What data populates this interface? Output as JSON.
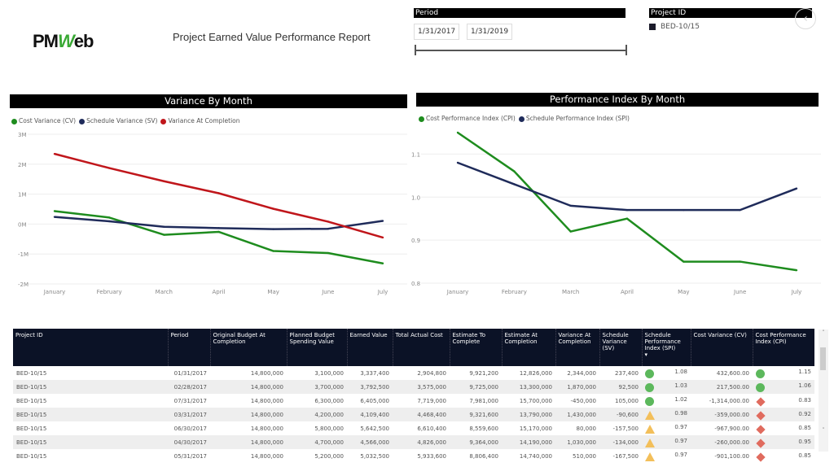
{
  "header": {
    "logo": "PMWeb",
    "title": "Project Earned Value Performance Report"
  },
  "period_slicer": {
    "label": "Period",
    "start": "1/31/2017",
    "end": "1/31/2019"
  },
  "project_slicer": {
    "label": "Project ID",
    "selected": "BED-10/15"
  },
  "colors": {
    "green": "#1e8c1e",
    "navy": "#1f2b5a",
    "red": "#c0161b",
    "good": "#5cb85c",
    "warn": "#f3bf5a",
    "bad": "#e06b5e"
  },
  "chart_data": [
    {
      "type": "line",
      "title": "Variance By Month",
      "categories": [
        "January",
        "February",
        "March",
        "April",
        "May",
        "June",
        "July"
      ],
      "yticks": [
        "3M",
        "2M",
        "1M",
        "0M",
        "-1M",
        "-2M"
      ],
      "ylim": [
        -2000000,
        3000000
      ],
      "grid": true,
      "legend": "top-left",
      "series": [
        {
          "name": "Cost Variance (CV)",
          "color": "#1e8c1e",
          "values": [
            432600,
            217500,
            -359000,
            -260000,
            -901100,
            -967900,
            -1314000
          ]
        },
        {
          "name": "Schedule Variance (SV)",
          "color": "#1f2b5a",
          "values": [
            237400,
            92500,
            -90600,
            -134000,
            -167500,
            -157500,
            105000
          ]
        },
        {
          "name": "Variance At Completion",
          "color": "#c0161b",
          "values": [
            2344000,
            1870000,
            1430000,
            1030000,
            510000,
            80000,
            -450000
          ]
        }
      ]
    },
    {
      "type": "line",
      "title": "Performance Index By Month",
      "categories": [
        "January",
        "February",
        "March",
        "April",
        "May",
        "June",
        "July"
      ],
      "yticks": [
        "1.1",
        "1.0",
        "0.9",
        "0.8"
      ],
      "ylim": [
        0.8,
        1.15
      ],
      "grid": true,
      "legend": "top-left",
      "series": [
        {
          "name": "Cost Performance Index (CPI)",
          "color": "#1e8c1e",
          "values": [
            1.15,
            1.06,
            0.92,
            0.95,
            0.85,
            0.85,
            0.83
          ]
        },
        {
          "name": "Schedule Performance Index (SPI)",
          "color": "#1f2b5a",
          "values": [
            1.08,
            1.03,
            0.98,
            0.97,
            0.97,
            0.97,
            1.02
          ]
        }
      ]
    }
  ],
  "table": {
    "columns": [
      "Project ID",
      "Period",
      "Original Budget At Completion",
      "Planned Budget Spending Value",
      "Earned Value",
      "Total Actual Cost",
      "Estimate To Complete",
      "Estimate At Completion",
      "Variance At Completion",
      "Schedule Variance (SV)",
      "Schedule Performance Index (SPI)",
      "Cost Variance (CV)",
      "Cost Performance Index (CPI)"
    ],
    "rows": [
      [
        "BED-10/15",
        "01/31/2017",
        "14,800,000",
        "3,100,000",
        "3,337,400",
        "2,904,800",
        "9,921,200",
        "12,826,000",
        "2,344,000",
        "237,400",
        "good",
        "1.08",
        "432,600.00",
        "good",
        "1.15"
      ],
      [
        "BED-10/15",
        "02/28/2017",
        "14,800,000",
        "3,700,000",
        "3,792,500",
        "3,575,000",
        "9,725,000",
        "13,300,000",
        "1,870,000",
        "92,500",
        "good",
        "1.03",
        "217,500.00",
        "good",
        "1.06"
      ],
      [
        "BED-10/15",
        "07/31/2017",
        "14,800,000",
        "6,300,000",
        "6,405,000",
        "7,719,000",
        "7,981,000",
        "15,700,000",
        "-450,000",
        "105,000",
        "good",
        "1.02",
        "-1,314,000.00",
        "bad",
        "0.83"
      ],
      [
        "BED-10/15",
        "03/31/2017",
        "14,800,000",
        "4,200,000",
        "4,109,400",
        "4,468,400",
        "9,321,600",
        "13,790,000",
        "1,430,000",
        "-90,600",
        "warn",
        "0.98",
        "-359,000.00",
        "bad",
        "0.92"
      ],
      [
        "BED-10/15",
        "06/30/2017",
        "14,800,000",
        "5,800,000",
        "5,642,500",
        "6,610,400",
        "8,559,600",
        "15,170,000",
        "80,000",
        "-157,500",
        "warn",
        "0.97",
        "-967,900.00",
        "bad",
        "0.85"
      ],
      [
        "BED-10/15",
        "04/30/2017",
        "14,800,000",
        "4,700,000",
        "4,566,000",
        "4,826,000",
        "9,364,000",
        "14,190,000",
        "1,030,000",
        "-134,000",
        "warn",
        "0.97",
        "-260,000.00",
        "bad",
        "0.95"
      ],
      [
        "BED-10/15",
        "05/31/2017",
        "14,800,000",
        "5,200,000",
        "5,032,500",
        "5,933,600",
        "8,806,400",
        "14,740,000",
        "510,000",
        "-167,500",
        "warn",
        "0.97",
        "-901,100.00",
        "bad",
        "0.85"
      ]
    ]
  }
}
